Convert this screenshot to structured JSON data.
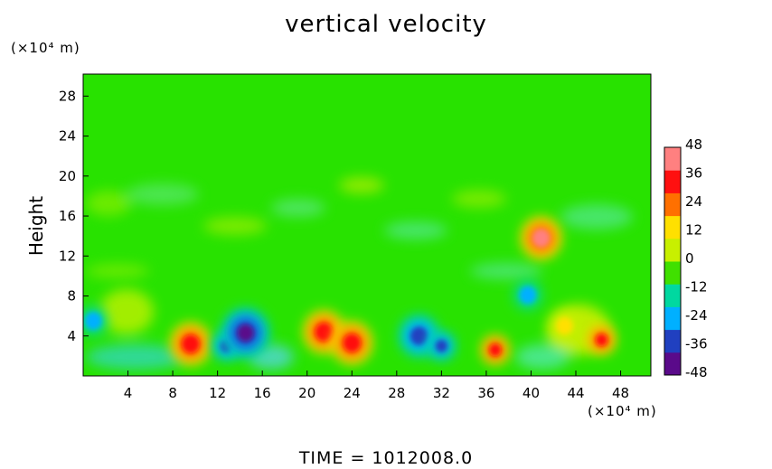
{
  "chart_data": {
    "type": "heatmap",
    "title": "vertical velocity",
    "ylabel": "Height",
    "y_units": "(×10⁴ m)",
    "x_units": "(×10⁴ m)",
    "xlim": [
      0,
      50.7
    ],
    "ylim": [
      0,
      30.2
    ],
    "x_ticks": [
      "4",
      "8",
      "12",
      "16",
      "20",
      "24",
      "28",
      "32",
      "36",
      "40",
      "44",
      "48"
    ],
    "y_ticks": [
      "4",
      "8",
      "12",
      "16",
      "20",
      "24",
      "28"
    ],
    "colorbar": {
      "ticks": [
        "48",
        "36",
        "24",
        "12",
        "0",
        "-12",
        "-24",
        "-36",
        "-48"
      ],
      "range": [
        -48,
        48
      ],
      "colors": [
        "#5a0a8a",
        "#2040c0",
        "#00b0ff",
        "#00d8a0",
        "#40e000",
        "#c8f000",
        "#ffe000",
        "#ff7000",
        "#ff1010",
        "#ff8080"
      ]
    },
    "features": [
      {
        "x": 0.9,
        "y": 5.5,
        "value": -26
      },
      {
        "x": 9.6,
        "y": 3.2,
        "value": 36
      },
      {
        "x": 12.8,
        "y": 3.0,
        "value": -30
      },
      {
        "x": 14.5,
        "y": 4.3,
        "value": -48
      },
      {
        "x": 21.5,
        "y": 4.4,
        "value": 38
      },
      {
        "x": 24.0,
        "y": 3.3,
        "value": 34
      },
      {
        "x": 30.0,
        "y": 4.0,
        "value": -34
      },
      {
        "x": 32.0,
        "y": 3.0,
        "value": -30
      },
      {
        "x": 36.8,
        "y": 2.6,
        "value": 30
      },
      {
        "x": 40.9,
        "y": 13.8,
        "value": 40
      },
      {
        "x": 39.7,
        "y": 8.1,
        "value": -24
      },
      {
        "x": 46.3,
        "y": 3.6,
        "value": 30
      },
      {
        "x": 43.0,
        "y": 5.0,
        "value": 18
      }
    ],
    "footer": "TIME  =  1012008.0"
  }
}
